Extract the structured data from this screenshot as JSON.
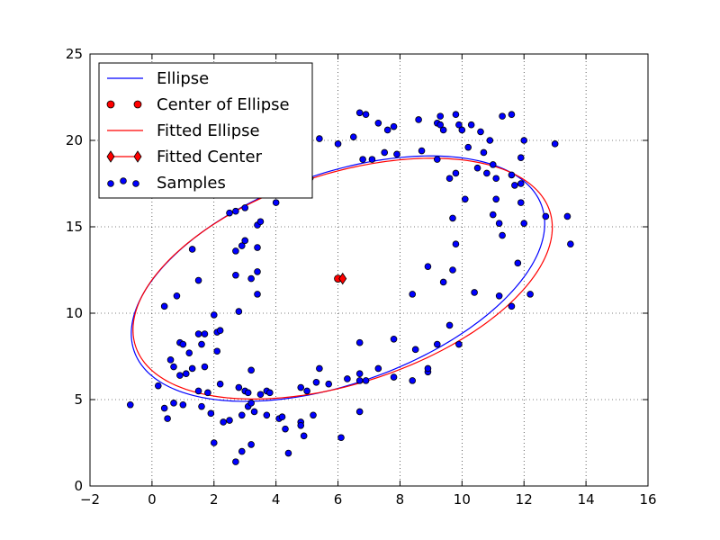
{
  "chart_data": {
    "type": "scatter",
    "title": "",
    "xlabel": "",
    "ylabel": "",
    "xlim": [
      -2,
      16
    ],
    "ylim": [
      0,
      25
    ],
    "xticks": [
      -2,
      0,
      2,
      4,
      6,
      8,
      10,
      12,
      14,
      16
    ],
    "yticks": [
      0,
      5,
      10,
      15,
      20,
      25
    ],
    "xtick_labels": [
      "−2",
      "0",
      "2",
      "4",
      "6",
      "8",
      "10",
      "12",
      "14",
      "16"
    ],
    "ytick_labels": [
      "0",
      "5",
      "10",
      "15",
      "20",
      "25"
    ],
    "grid": true,
    "legend_position": "top-left",
    "series": [
      {
        "name": "Ellipse",
        "kind": "line",
        "color": "#0000ff",
        "center": [
          6.0,
          12.0
        ],
        "semi_axes": [
          8.3,
          5.1
        ],
        "angle_deg": 49
      },
      {
        "name": "Center of Ellipse",
        "kind": "marker",
        "marker": "circle",
        "color": "#ff0000",
        "points": [
          [
            6.0,
            12.0
          ]
        ]
      },
      {
        "name": "Fitted Ellipse",
        "kind": "line",
        "color": "#ff0000",
        "center": [
          6.15,
          12.0
        ],
        "semi_axes": [
          8.2,
          5.2
        ],
        "angle_deg": 47
      },
      {
        "name": "Fitted Center",
        "kind": "marker",
        "marker": "diamond",
        "color": "#ff0000",
        "points": [
          [
            6.15,
            12.0
          ]
        ]
      },
      {
        "name": "Samples",
        "kind": "scatter",
        "marker": "circle",
        "color": "#0000ff",
        "points": [
          [
            -0.7,
            4.7
          ],
          [
            0.2,
            5.8
          ],
          [
            0.4,
            4.5
          ],
          [
            0.4,
            10.4
          ],
          [
            0.5,
            3.9
          ],
          [
            0.6,
            7.3
          ],
          [
            0.7,
            4.8
          ],
          [
            0.7,
            6.9
          ],
          [
            0.8,
            11.0
          ],
          [
            0.9,
            6.4
          ],
          [
            0.9,
            8.3
          ],
          [
            1.0,
            4.7
          ],
          [
            1.0,
            8.2
          ],
          [
            1.1,
            6.5
          ],
          [
            1.2,
            7.7
          ],
          [
            1.3,
            6.8
          ],
          [
            1.3,
            13.7
          ],
          [
            1.5,
            8.8
          ],
          [
            1.5,
            11.9
          ],
          [
            1.5,
            5.5
          ],
          [
            1.6,
            4.6
          ],
          [
            1.6,
            8.2
          ],
          [
            1.7,
            8.8
          ],
          [
            1.7,
            6.9
          ],
          [
            1.8,
            5.4
          ],
          [
            1.9,
            4.2
          ],
          [
            2.0,
            9.9
          ],
          [
            2.0,
            2.5
          ],
          [
            2.1,
            7.8
          ],
          [
            2.1,
            8.9
          ],
          [
            2.2,
            5.9
          ],
          [
            2.2,
            9.0
          ],
          [
            2.3,
            3.7
          ],
          [
            2.5,
            15.8
          ],
          [
            2.5,
            3.8
          ],
          [
            2.7,
            13.6
          ],
          [
            2.7,
            12.2
          ],
          [
            2.7,
            15.9
          ],
          [
            2.7,
            1.4
          ],
          [
            2.8,
            5.7
          ],
          [
            2.8,
            10.1
          ],
          [
            2.9,
            4.1
          ],
          [
            2.9,
            13.9
          ],
          [
            2.9,
            2.0
          ],
          [
            3.0,
            16.1
          ],
          [
            3.0,
            14.2
          ],
          [
            3.0,
            5.5
          ],
          [
            3.1,
            5.4
          ],
          [
            3.1,
            4.6
          ],
          [
            3.2,
            12.0
          ],
          [
            3.2,
            4.8
          ],
          [
            3.2,
            6.7
          ],
          [
            3.2,
            2.4
          ],
          [
            3.3,
            4.3
          ],
          [
            3.4,
            11.1
          ],
          [
            3.4,
            15.1
          ],
          [
            3.4,
            13.8
          ],
          [
            3.4,
            12.4
          ],
          [
            3.5,
            15.3
          ],
          [
            3.5,
            5.3
          ],
          [
            3.7,
            5.5
          ],
          [
            3.7,
            4.1
          ],
          [
            3.8,
            5.4
          ],
          [
            4.0,
            16.4
          ],
          [
            4.1,
            3.9
          ],
          [
            4.2,
            4.0
          ],
          [
            4.3,
            3.3
          ],
          [
            4.4,
            1.9
          ],
          [
            4.8,
            5.7
          ],
          [
            4.8,
            3.7
          ],
          [
            4.8,
            3.5
          ],
          [
            4.9,
            2.9
          ],
          [
            5.0,
            5.5
          ],
          [
            5.1,
            17.8
          ],
          [
            5.2,
            4.1
          ],
          [
            5.3,
            6.0
          ],
          [
            5.4,
            6.8
          ],
          [
            5.4,
            20.1
          ],
          [
            5.7,
            5.9
          ],
          [
            6.0,
            19.8
          ],
          [
            6.1,
            2.8
          ],
          [
            6.3,
            6.2
          ],
          [
            6.5,
            20.2
          ],
          [
            6.7,
            6.5
          ],
          [
            6.7,
            6.1
          ],
          [
            6.7,
            4.3
          ],
          [
            6.7,
            8.3
          ],
          [
            6.7,
            21.6
          ],
          [
            6.8,
            18.9
          ],
          [
            6.9,
            21.5
          ],
          [
            6.9,
            6.1
          ],
          [
            7.1,
            18.9
          ],
          [
            7.3,
            6.8
          ],
          [
            7.3,
            21.0
          ],
          [
            7.5,
            19.3
          ],
          [
            7.6,
            20.6
          ],
          [
            7.8,
            6.3
          ],
          [
            7.8,
            8.5
          ],
          [
            7.8,
            20.8
          ],
          [
            7.9,
            19.2
          ],
          [
            8.4,
            11.1
          ],
          [
            8.4,
            6.1
          ],
          [
            8.5,
            7.9
          ],
          [
            8.6,
            21.2
          ],
          [
            8.7,
            19.4
          ],
          [
            8.9,
            12.7
          ],
          [
            8.9,
            6.6
          ],
          [
            8.9,
            6.8
          ],
          [
            9.2,
            21.0
          ],
          [
            9.2,
            8.2
          ],
          [
            9.2,
            18.9
          ],
          [
            9.3,
            20.9
          ],
          [
            9.3,
            21.4
          ],
          [
            9.4,
            20.6
          ],
          [
            9.4,
            11.8
          ],
          [
            9.6,
            9.3
          ],
          [
            9.6,
            17.8
          ],
          [
            9.7,
            12.5
          ],
          [
            9.7,
            15.5
          ],
          [
            9.8,
            21.5
          ],
          [
            9.8,
            14.0
          ],
          [
            9.8,
            18.1
          ],
          [
            9.9,
            8.2
          ],
          [
            9.9,
            20.9
          ],
          [
            10.0,
            20.6
          ],
          [
            10.1,
            16.6
          ],
          [
            10.2,
            19.6
          ],
          [
            10.3,
            20.9
          ],
          [
            10.4,
            11.2
          ],
          [
            10.5,
            18.4
          ],
          [
            10.6,
            20.5
          ],
          [
            10.7,
            19.3
          ],
          [
            10.8,
            18.1
          ],
          [
            10.9,
            20.0
          ],
          [
            11.0,
            18.6
          ],
          [
            11.0,
            15.7
          ],
          [
            11.1,
            16.6
          ],
          [
            11.1,
            17.8
          ],
          [
            11.2,
            15.2
          ],
          [
            11.2,
            11.0
          ],
          [
            11.3,
            21.4
          ],
          [
            11.6,
            18.0
          ],
          [
            11.6,
            21.5
          ],
          [
            11.6,
            10.4
          ],
          [
            11.7,
            17.4
          ],
          [
            11.8,
            12.9
          ],
          [
            11.9,
            19.0
          ],
          [
            11.9,
            17.5
          ],
          [
            11.9,
            16.4
          ],
          [
            12.0,
            15.2
          ],
          [
            12.0,
            20.0
          ],
          [
            12.2,
            11.1
          ],
          [
            12.7,
            15.6
          ],
          [
            13.0,
            19.8
          ],
          [
            13.4,
            15.6
          ],
          [
            13.5,
            14.0
          ],
          [
            11.3,
            14.5
          ]
        ]
      }
    ]
  }
}
